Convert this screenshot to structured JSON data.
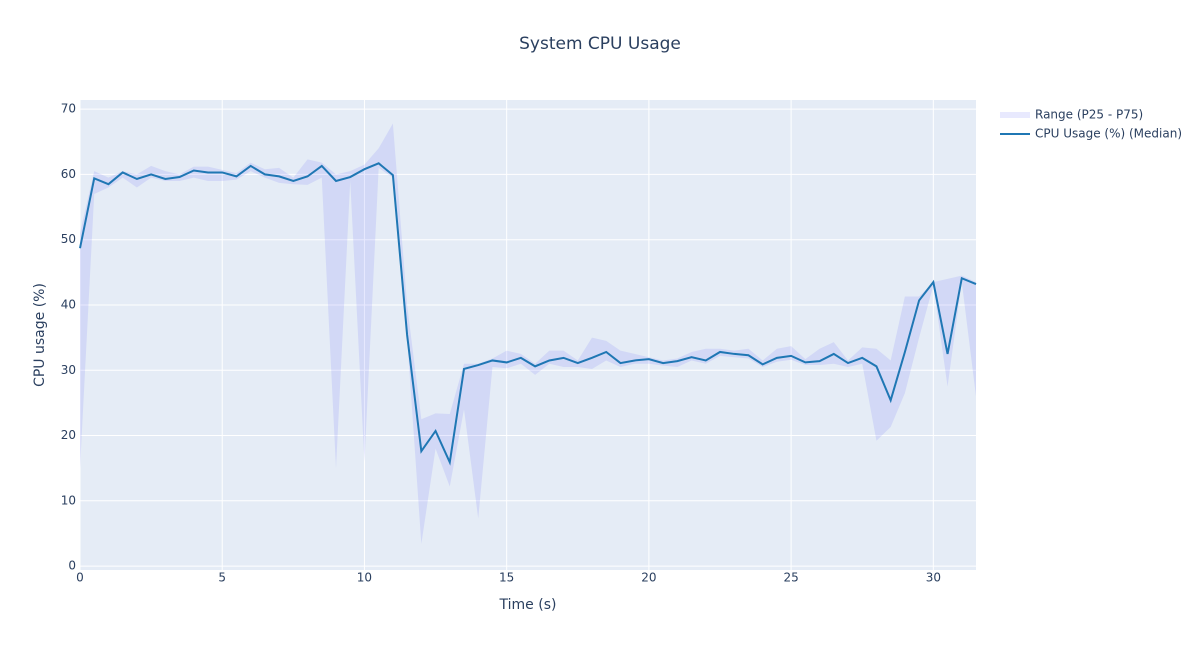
{
  "chart_data": {
    "type": "line",
    "title": "System CPU Usage",
    "x_label": "Time (s)",
    "y_label": "CPU usage (%)",
    "x": [
      0,
      0.5,
      1,
      1.5,
      2,
      2.5,
      3,
      3.5,
      4,
      4.5,
      5,
      5.5,
      6,
      6.5,
      7,
      7.5,
      8,
      8.5,
      9,
      9.5,
      10,
      10.5,
      11,
      11.5,
      12,
      12.5,
      13,
      13.5,
      14,
      14.5,
      15,
      15.5,
      16,
      16.5,
      17,
      17.5,
      18,
      18.5,
      19,
      19.5,
      20,
      20.5,
      21,
      21.5,
      22,
      22.5,
      23,
      23.5,
      24,
      24.5,
      25,
      25.5,
      26,
      26.5,
      27,
      27.5,
      28,
      28.5,
      29,
      29.5,
      30,
      30.5,
      31,
      31.5
    ],
    "band": {
      "name": "Range (P25 - P75)",
      "color": "rgba(99,110,250,0.15)",
      "lower": [
        15,
        57,
        58,
        59.5,
        58,
        59.5,
        59,
        59,
        59.5,
        59,
        59,
        59.2,
        60.5,
        59.5,
        58.7,
        58.5,
        58.4,
        59.5,
        15,
        59,
        16,
        61,
        59.5,
        35,
        3.4,
        18,
        12.2,
        24,
        7.3,
        30.5,
        30.3,
        31,
        29.3,
        31,
        30.5,
        30.5,
        30.2,
        31.5,
        30.5,
        31,
        31,
        30.7,
        30.5,
        31.5,
        31,
        32.2,
        32,
        31.8,
        30.5,
        31.3,
        31.6,
        30.8,
        30.8,
        31,
        30.5,
        31,
        19.2,
        21.3,
        26.5,
        35,
        43,
        27.5,
        43.5,
        26
      ],
      "upper": [
        51,
        60.5,
        59.5,
        60.5,
        60,
        61.3,
        60.5,
        60,
        61.2,
        61.2,
        60.7,
        60.2,
        61.8,
        60.8,
        61,
        59.5,
        62.3,
        61.8,
        60,
        60.5,
        61.5,
        64,
        67.8,
        40,
        22.5,
        23.4,
        23.3,
        31,
        31,
        31.8,
        33,
        32.5,
        31,
        33,
        33,
        31.5,
        35,
        34.5,
        33,
        32.5,
        32,
        31.5,
        31.8,
        32.8,
        33.3,
        33.3,
        33,
        33.3,
        31.5,
        33.3,
        33.7,
        31.7,
        33.3,
        34.3,
        31.5,
        33.5,
        33.3,
        31.5,
        41.3,
        41.3,
        43.5,
        44,
        44.5,
        43.5
      ]
    },
    "series": [
      {
        "name": "CPU Usage (%) (Median)",
        "color": "#1f77b4",
        "values": [
          48.7,
          59.4,
          58.5,
          60.3,
          59.3,
          60,
          59.3,
          59.6,
          60.6,
          60.3,
          60.3,
          59.7,
          61.3,
          60,
          59.7,
          59,
          59.7,
          61.3,
          59,
          59.6,
          60.8,
          61.7,
          59.9,
          35.4,
          17.6,
          20.7,
          15.9,
          30.2,
          30.8,
          31.5,
          31.2,
          31.9,
          30.6,
          31.5,
          31.9,
          31.1,
          31.9,
          32.8,
          31.1,
          31.5,
          31.7,
          31.1,
          31.4,
          32,
          31.5,
          32.8,
          32.5,
          32.3,
          30.9,
          31.9,
          32.2,
          31.2,
          31.4,
          32.5,
          31.1,
          31.9,
          30.6,
          25.4,
          32.8,
          40.7,
          43.5,
          32.5,
          44.1,
          43.2
        ]
      }
    ],
    "xlim": [
      0,
      31.5
    ],
    "ylim": [
      -0.6,
      71.4
    ],
    "xticks": [
      0,
      5,
      10,
      15,
      20,
      25,
      30
    ],
    "yticks": [
      0,
      10,
      20,
      30,
      40,
      50,
      60,
      70
    ],
    "grid": true
  }
}
